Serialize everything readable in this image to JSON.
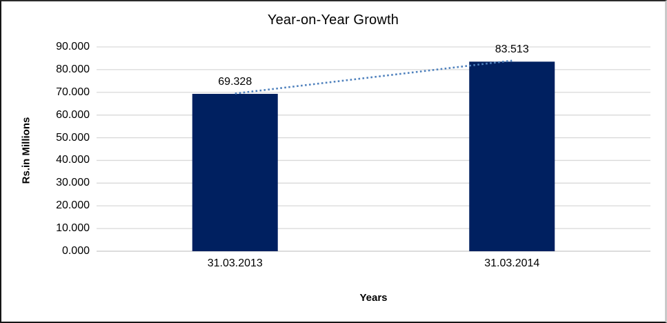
{
  "chart_data": {
    "type": "bar",
    "title": "Year-on-Year Growth",
    "xlabel": "Years",
    "ylabel": "Rs.in Millions",
    "categories": [
      "31.03.2013",
      "31.03.2014"
    ],
    "values": [
      69.328,
      83.513
    ],
    "data_labels": [
      "69.328",
      "83.513"
    ],
    "ylim": [
      0,
      90
    ],
    "ytick_step": 10,
    "ytick_labels": [
      "0.000",
      "10.000",
      "20.000",
      "30.000",
      "40.000",
      "50.000",
      "60.000",
      "70.000",
      "80.000",
      "90.000"
    ],
    "grid": true,
    "legend": "none",
    "bar_color": "#002060",
    "gridline_color": "#d9d9d9",
    "baseline_color": "#c6c6c6",
    "trendline": {
      "type": "linear",
      "style": "dotted",
      "color": "#4f81bd",
      "connects": "bar-top-centers"
    }
  }
}
